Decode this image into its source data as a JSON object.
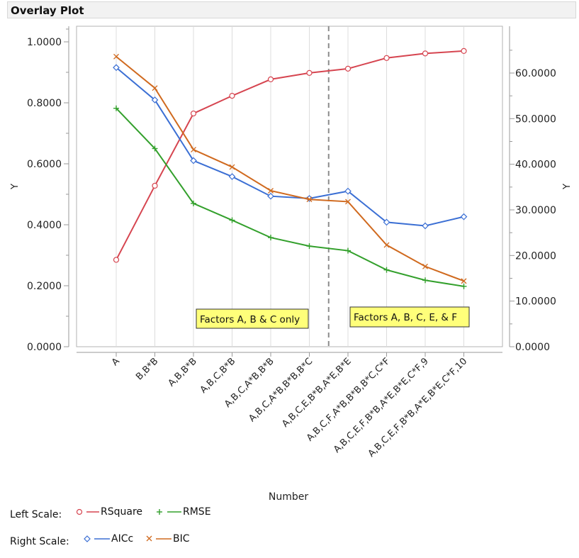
{
  "header": {
    "title": "Overlay Plot"
  },
  "chart_data": {
    "type": "line",
    "title": "Overlay Plot",
    "xlabel": "Number",
    "ylabel_left": "Y",
    "ylabel_right": "Y",
    "categories": [
      "A",
      "B,B*B",
      "A,B,B*B",
      "A,B,C,B*B",
      "A,B,C,A*B,B*B",
      "A,B,C,A*B,B*B,B*C",
      "A,B,C,E,B*B,A*E,B*E",
      "A,B,C,F,A*B,B*B,B*C,C*F",
      "A,B,C,E,F,B*B,A*E,B*E,C*F,9",
      "A,B,C,E,F,B*B,A*E,B*E,C*F,10"
    ],
    "left_axis": {
      "ylim": [
        0,
        1.05
      ],
      "ticks": [
        0,
        0.2,
        0.4,
        0.6,
        0.8,
        1.0
      ],
      "tick_labels": [
        "0.0000",
        "0.2000",
        "0.4000",
        "0.6000",
        "0.8000",
        "1.0000"
      ]
    },
    "right_axis": {
      "ylim": [
        0,
        70
      ],
      "ticks": [
        0,
        10,
        20,
        30,
        40,
        50,
        60
      ],
      "tick_labels": [
        "0.0000",
        "10.0000",
        "20.0000",
        "30.0000",
        "40.0000",
        "50.0000",
        "60.0000"
      ]
    },
    "series": [
      {
        "name": "RSquare",
        "axis": "left",
        "marker": "circle",
        "color": "#d64550",
        "values": [
          0.285,
          0.528,
          0.765,
          0.823,
          0.877,
          0.898,
          0.912,
          0.947,
          0.962,
          0.97
        ]
      },
      {
        "name": "RMSE",
        "axis": "left",
        "marker": "plus",
        "color": "#33a02c",
        "values": [
          0.782,
          0.65,
          0.47,
          0.415,
          0.358,
          0.33,
          0.315,
          0.252,
          0.218,
          0.198
        ]
      },
      {
        "name": "AICc",
        "axis": "right",
        "marker": "diamond",
        "color": "#3b6fd4",
        "values": [
          61.2,
          54.1,
          40.8,
          37.3,
          33.0,
          32.5,
          34.1,
          27.3,
          26.5,
          28.5
        ]
      },
      {
        "name": "BIC",
        "axis": "right",
        "marker": "x",
        "color": "#d06a1f",
        "values": [
          63.6,
          56.7,
          43.2,
          39.4,
          34.2,
          32.3,
          31.8,
          22.3,
          17.6,
          14.4
        ]
      }
    ],
    "reference_line": {
      "after_category_index": 5,
      "style": "dashed"
    },
    "annotations": [
      "Factors A, B & C only",
      "Factors A, B, C, E, & F"
    ],
    "grid": "vertical"
  },
  "legend": {
    "left_scale_label": "Left Scale:",
    "right_scale_label": "Right Scale:",
    "left_items": [
      "RSquare",
      "RMSE"
    ],
    "right_items": [
      "AICc",
      "BIC"
    ]
  },
  "colors": {
    "rsquare": "#d64550",
    "rmse": "#33a02c",
    "aicc": "#3b6fd4",
    "bic": "#d06a1f",
    "annotation_bg": "#ffff7a"
  }
}
